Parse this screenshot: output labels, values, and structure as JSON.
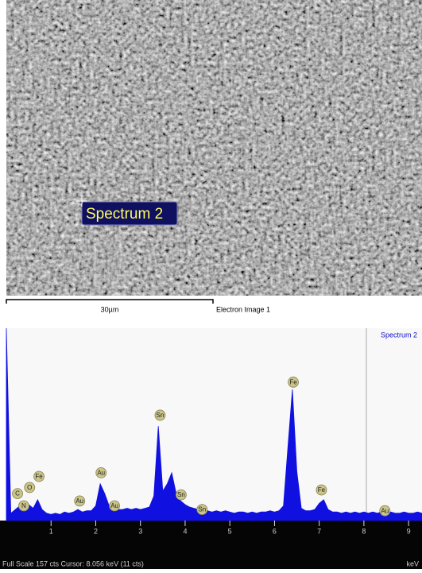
{
  "image": {
    "label": "Spectrum 2",
    "scale_label": "30µm",
    "caption": "Electron Image 1"
  },
  "chart_data": {
    "type": "area",
    "title": "Spectrum 2",
    "x_label": "keV",
    "status": "Full Scale 157 cts  Cursor: 8.056 keV (11 cts)",
    "color": "#1010e0",
    "cursor": 8.056,
    "xlim": [
      0,
      9.3
    ],
    "ylim": [
      0,
      157
    ],
    "xticks": [
      1,
      2,
      3,
      4,
      5,
      6,
      7,
      8,
      9
    ],
    "x": [
      0.0,
      0.1,
      0.2,
      0.3,
      0.4,
      0.5,
      0.6,
      0.7,
      0.8,
      0.9,
      1.0,
      1.1,
      1.2,
      1.3,
      1.4,
      1.5,
      1.6,
      1.7,
      1.8,
      1.9,
      2.0,
      2.1,
      2.2,
      2.3,
      2.4,
      2.5,
      2.6,
      2.7,
      2.8,
      2.9,
      3.0,
      3.1,
      3.2,
      3.3,
      3.4,
      3.5,
      3.6,
      3.7,
      3.8,
      3.9,
      4.0,
      4.1,
      4.2,
      4.3,
      4.4,
      4.5,
      4.6,
      4.7,
      4.8,
      4.9,
      5.0,
      5.1,
      5.2,
      5.3,
      5.4,
      5.5,
      5.6,
      5.7,
      5.8,
      5.9,
      6.0,
      6.1,
      6.2,
      6.3,
      6.4,
      6.5,
      6.6,
      6.7,
      6.8,
      6.9,
      7.0,
      7.1,
      7.2,
      7.3,
      7.4,
      7.5,
      7.6,
      7.7,
      7.8,
      7.9,
      8.0,
      8.1,
      8.2,
      8.3,
      8.4,
      8.5,
      8.6,
      8.7,
      8.8,
      8.9,
      9.0,
      9.1,
      9.2,
      9.3
    ],
    "values": [
      157,
      6,
      9,
      12,
      9,
      13,
      10,
      17,
      9,
      6,
      5,
      6,
      5,
      7,
      6,
      7,
      9,
      7,
      8,
      8,
      12,
      30,
      22,
      12,
      10,
      9,
      9,
      10,
      9,
      10,
      9,
      10,
      11,
      20,
      77,
      24,
      30,
      39,
      22,
      16,
      13,
      11,
      10,
      9,
      8,
      8,
      7,
      8,
      7,
      8,
      7,
      6,
      7,
      7,
      6,
      7,
      6,
      7,
      7,
      8,
      7,
      8,
      12,
      60,
      107,
      40,
      10,
      8,
      8,
      9,
      14,
      17,
      9,
      7,
      7,
      6,
      7,
      6,
      7,
      6,
      7,
      6,
      7,
      6,
      7,
      6,
      7,
      6,
      6,
      7,
      6,
      6,
      7,
      6
    ],
    "peak_labels": [
      {
        "label": "C",
        "x": 0.25,
        "y": 22
      },
      {
        "label": "N",
        "x": 0.39,
        "y": 12
      },
      {
        "label": "O",
        "x": 0.52,
        "y": 27
      },
      {
        "label": "Fe",
        "x": 0.73,
        "y": 36
      },
      {
        "label": "Au",
        "x": 1.64,
        "y": 16
      },
      {
        "label": "Au",
        "x": 2.12,
        "y": 39
      },
      {
        "label": "Au",
        "x": 2.42,
        "y": 12
      },
      {
        "label": "Sn",
        "x": 3.44,
        "y": 86
      },
      {
        "label": "Sn",
        "x": 3.91,
        "y": 21
      },
      {
        "label": "Sn",
        "x": 4.38,
        "y": 9
      },
      {
        "label": "Fe",
        "x": 6.42,
        "y": 113
      },
      {
        "label": "Fe",
        "x": 7.05,
        "y": 25
      },
      {
        "label": "Au",
        "x": 8.47,
        "y": 8
      }
    ]
  }
}
